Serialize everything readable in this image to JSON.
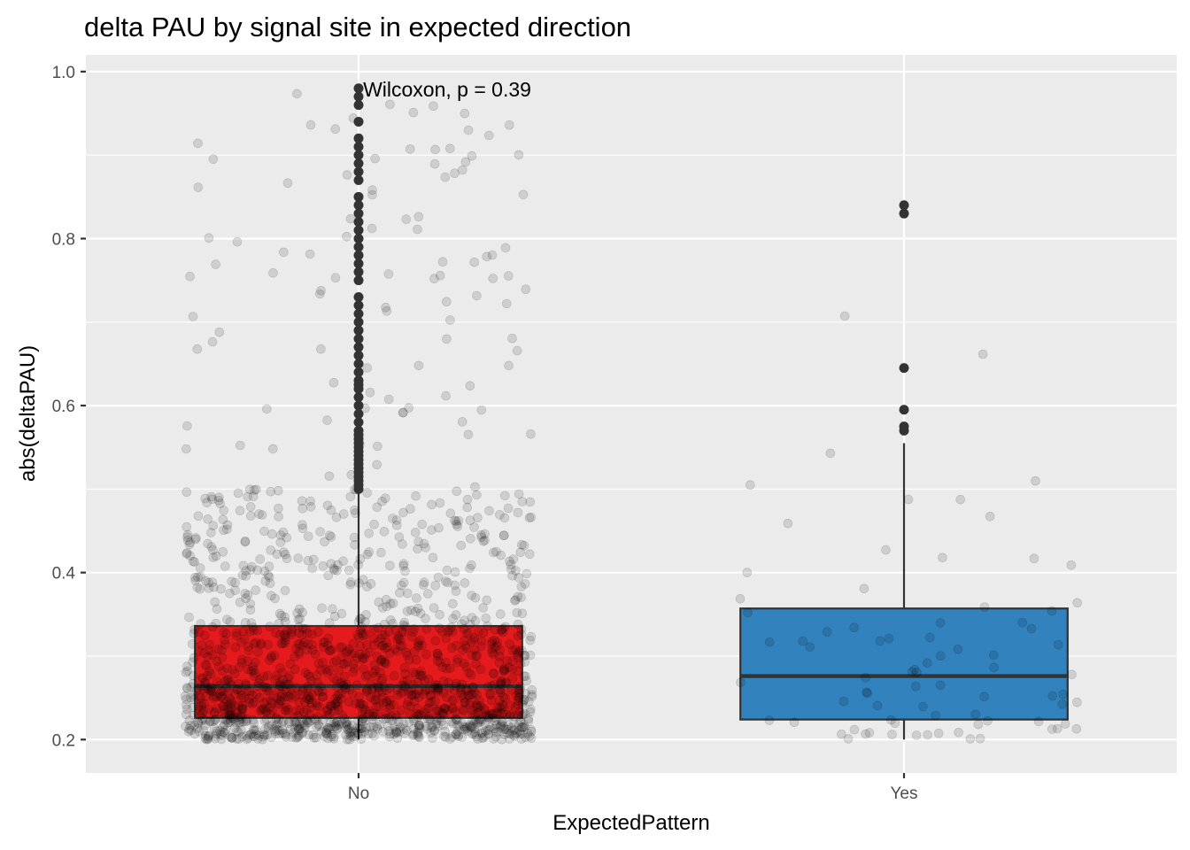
{
  "chart_data": {
    "type": "box",
    "title": "delta PAU by signal site in expected direction",
    "xlabel": "ExpectedPattern",
    "ylabel": "abs(deltaPAU)",
    "ylim": [
      0.16,
      1.02
    ],
    "yticks": [
      0.2,
      0.4,
      0.6,
      0.8,
      1.0
    ],
    "ytick_labels": [
      "0.2",
      "0.4",
      "0.6",
      "0.8",
      "1.0"
    ],
    "categories": [
      "No",
      "Yes"
    ],
    "annotation": "Wilcoxon, p = 0.39",
    "grid": true,
    "legend": "none",
    "boxes": [
      {
        "category": "No",
        "color": "#E41A1C",
        "whisker_low": 0.2,
        "q1": 0.226,
        "median": 0.264,
        "q3": 0.336,
        "whisker_high": 0.5,
        "outliers": [
          0.5,
          0.505,
          0.51,
          0.515,
          0.52,
          0.525,
          0.53,
          0.535,
          0.54,
          0.545,
          0.55,
          0.555,
          0.56,
          0.565,
          0.57,
          0.58,
          0.59,
          0.6,
          0.61,
          0.62,
          0.625,
          0.63,
          0.64,
          0.65,
          0.66,
          0.67,
          0.68,
          0.69,
          0.7,
          0.71,
          0.72,
          0.73,
          0.75,
          0.76,
          0.77,
          0.78,
          0.79,
          0.8,
          0.81,
          0.82,
          0.83,
          0.84,
          0.85,
          0.87,
          0.88,
          0.89,
          0.9,
          0.91,
          0.92,
          0.94,
          0.96,
          0.97,
          0.98
        ],
        "n_points": 1600
      },
      {
        "category": "Yes",
        "color": "#3182BD",
        "whisker_low": 0.2,
        "q1": 0.224,
        "median": 0.276,
        "q3": 0.357,
        "whisker_high": 0.555,
        "outliers": [
          0.57,
          0.575,
          0.595,
          0.645,
          0.83,
          0.84
        ],
        "n_points": 80
      }
    ],
    "colors": {
      "panel_background": "#EBEBEB",
      "gridline": "#FFFFFF",
      "jitter_points": "#000000",
      "box_outline": "#333333",
      "outlier_points": "#333333"
    }
  }
}
